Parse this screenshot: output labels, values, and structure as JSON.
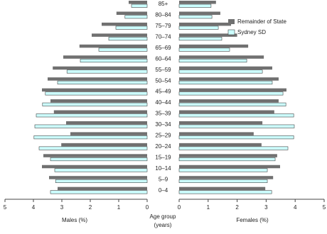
{
  "chart_data": {
    "type": "pyramid",
    "categories": [
      "85+",
      "80–84",
      "75–79",
      "70–74",
      "65–69",
      "60–64",
      "55–59",
      "50–54",
      "45–49",
      "40–44",
      "35–39",
      "30–34",
      "25–29",
      "20–24",
      "15–19",
      "10–14",
      "5–9",
      "0–4"
    ],
    "series": [
      {
        "name": "Remainder of State",
        "color": "#707070",
        "males": [
          0.65,
          1.08,
          1.6,
          1.95,
          2.38,
          2.95,
          3.32,
          3.5,
          3.7,
          3.4,
          3.28,
          2.85,
          2.7,
          3.02,
          3.65,
          3.7,
          3.45,
          3.15
        ],
        "females": [
          1.27,
          1.42,
          1.79,
          2.0,
          2.38,
          2.92,
          3.21,
          3.43,
          3.7,
          3.43,
          3.28,
          2.87,
          2.57,
          2.84,
          3.38,
          3.48,
          3.24,
          2.97
        ]
      },
      {
        "name": "Sydney SD",
        "color": "#ccffff",
        "males": [
          0.55,
          0.78,
          1.1,
          1.35,
          1.7,
          2.35,
          2.82,
          3.15,
          3.58,
          3.68,
          3.9,
          3.95,
          3.98,
          3.8,
          3.4,
          3.25,
          3.22,
          3.4
        ],
        "females": [
          1.1,
          1.13,
          1.35,
          1.47,
          1.74,
          2.33,
          2.87,
          3.21,
          3.58,
          3.68,
          3.95,
          3.97,
          3.95,
          3.75,
          3.31,
          3.04,
          3.04,
          3.19
        ]
      }
    ],
    "xlim": [
      0,
      5
    ],
    "xticks": [
      0,
      1,
      2,
      3,
      4,
      5
    ],
    "xlabel_males": "Males (%)",
    "xlabel_females": "Females (%)",
    "category_label": [
      "Age group",
      "(years)"
    ]
  }
}
